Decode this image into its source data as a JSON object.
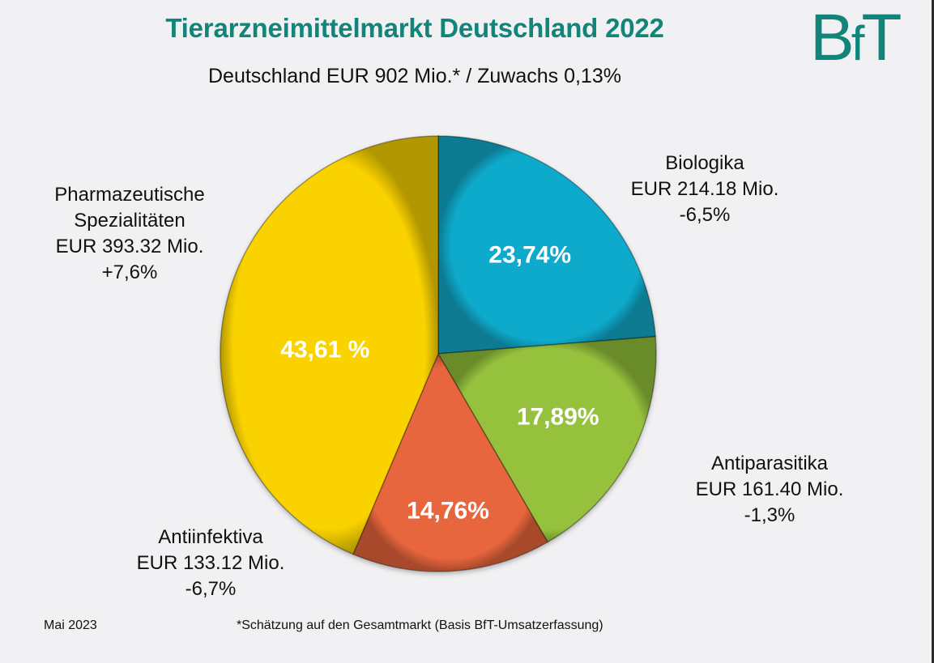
{
  "header": {
    "title": "Tierarzneimittelmarkt Deutschland 2022",
    "subtitle": "Deutschland EUR 902 Mio.* / Zuwachs 0,13%",
    "logo_text_b": "B",
    "logo_text_f": "f",
    "logo_text_t": "T"
  },
  "footer": {
    "date": "Mai 2023",
    "note": "*Schätzung auf den Gesamtmarkt (Basis BfT-Umsatzerfassung)"
  },
  "colors": {
    "title": "#11857a",
    "pharma": "#f9d200",
    "biologika": "#0baacb",
    "antiparasitika": "#95c13c",
    "antiinfektiva": "#e8663d"
  },
  "chart_data": {
    "type": "pie",
    "title": "Tierarzneimittelmarkt Deutschland 2022",
    "subtitle": "Deutschland EUR 902 Mio.* / Zuwachs 0,13%",
    "start_angle": "12 o'clock, clockwise",
    "slices": [
      {
        "name": "Biologika",
        "value": 23.74,
        "pct_label": "23,74%",
        "eur_label": "EUR 214.18 Mio.",
        "change": "-6,5%",
        "color": "#0baacb"
      },
      {
        "name": "Antiparasitika",
        "value": 17.89,
        "pct_label": "17,89%",
        "eur_label": "EUR 161.40 Mio.",
        "change": "-1,3%",
        "color": "#95c13c"
      },
      {
        "name": "Antiinfektiva",
        "value": 14.76,
        "pct_label": "14,76%",
        "eur_label": "EUR 133.12 Mio.",
        "change": "-6,7%",
        "color": "#e8663d"
      },
      {
        "name_line1": "Pharmazeutische",
        "name_line2": "Spezialitäten",
        "name": "Pharmazeutische Spezialitäten",
        "value": 43.61,
        "pct_label": "43,61 %",
        "eur_label": "EUR 393.32 Mio.",
        "change": "+7,6%",
        "color": "#f9d200"
      }
    ]
  }
}
